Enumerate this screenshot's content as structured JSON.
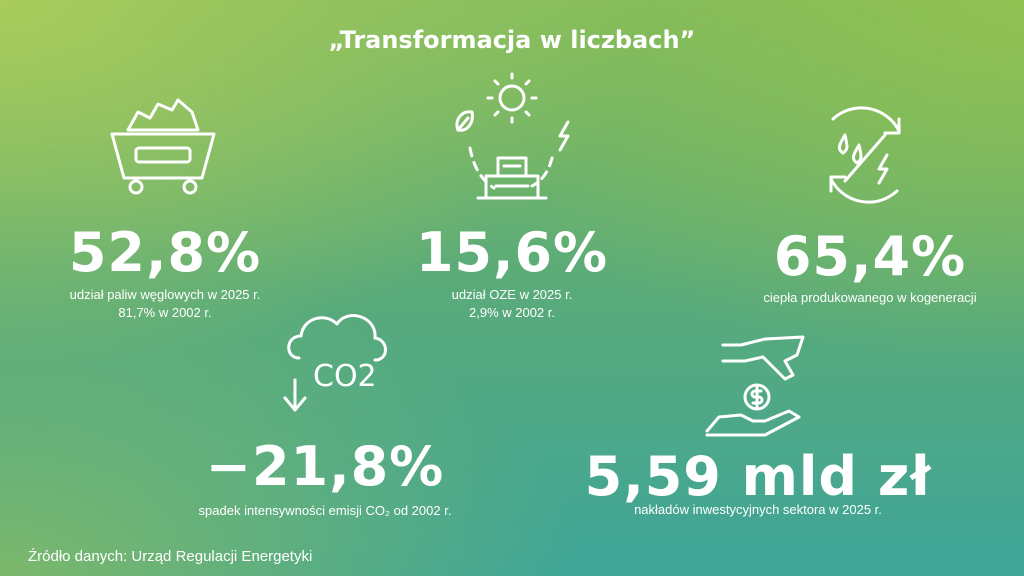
{
  "header": {
    "title": "„Transformacja w liczbach”"
  },
  "stats": [
    {
      "value": "52,8%",
      "lines": [
        "udział paliw węglowych w 2025 r.",
        "81,7% w 2002 r."
      ]
    },
    {
      "value": "15,6%",
      "lines": [
        "udział OZE w 2025 r.",
        "2,9% w 2002 r."
      ]
    },
    {
      "value": "65,4%",
      "lines": [
        "ciepła produkowanego w kogeneracji"
      ]
    },
    {
      "value": "−21,8%",
      "lines": [
        "spadek intensywności emisji CO₂ od 2002 r."
      ]
    },
    {
      "value": "5,59 mld zł",
      "lines": [
        "nakładów inwestycyjnych sektora w 2025 r."
      ]
    }
  ],
  "icons": {
    "co2": "CO2"
  },
  "source": "Źródło danych: Urząd Regulacji Energetyki"
}
